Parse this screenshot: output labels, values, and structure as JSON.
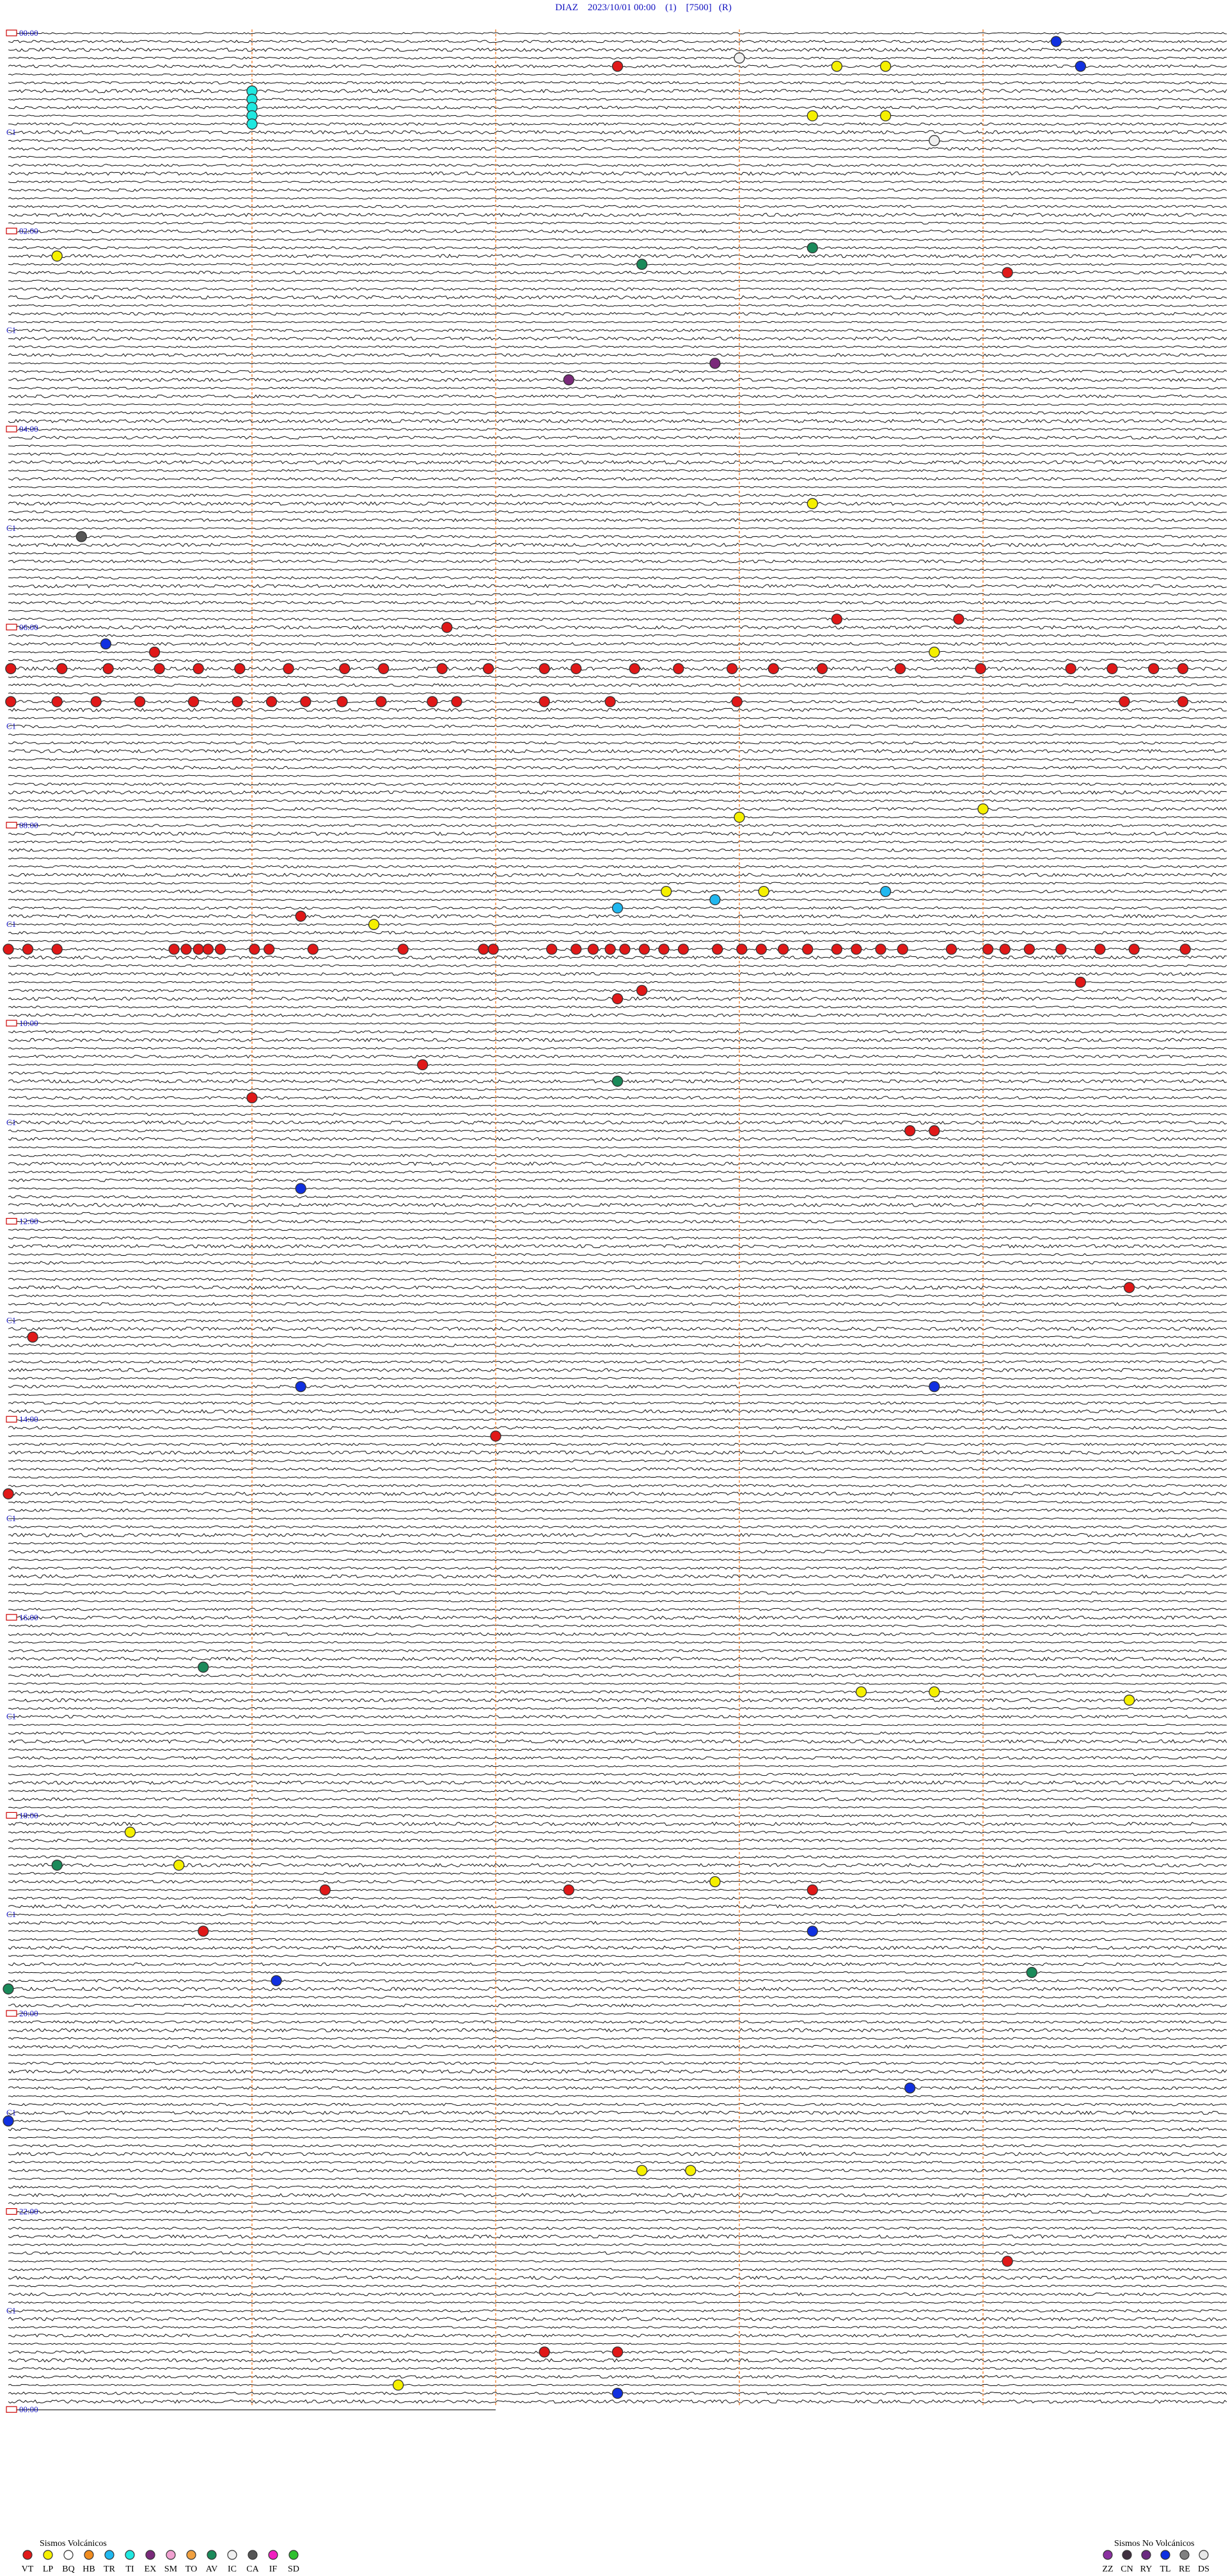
{
  "header": "DIAZ    2023/10/01 00:00    (1)    [7500]   (R)",
  "hour_labels": [
    "00:00",
    "02:00",
    "04:00",
    "06:00",
    "08:00",
    "10:00",
    "12:00",
    "14:00",
    "16:00",
    "18:00",
    "20:00",
    "22:00",
    "00:00"
  ],
  "channel_label": "C1",
  "legend": {
    "volcanic": {
      "title": "Sismos Volcánicos",
      "items": [
        {
          "code": "VT",
          "color": "#e01818"
        },
        {
          "code": "LP",
          "color": "#f5f000"
        },
        {
          "code": "BQ",
          "color": "#ffffff"
        },
        {
          "code": "HB",
          "color": "#f08c20"
        },
        {
          "code": "TR",
          "color": "#20b8f0"
        },
        {
          "code": "TI",
          "color": "#20e8e0"
        },
        {
          "code": "EX",
          "color": "#7a2a7a"
        },
        {
          "code": "SM",
          "color": "#f0a0d0"
        },
        {
          "code": "TO",
          "color": "#f0a040"
        },
        {
          "code": "AV",
          "color": "#1a8a5a"
        },
        {
          "code": "IC",
          "color": "#f0f0f0"
        },
        {
          "code": "CA",
          "color": "#555555"
        },
        {
          "code": "IF",
          "color": "#f020c0"
        },
        {
          "code": "SD",
          "color": "#30c030"
        }
      ]
    },
    "non_volcanic": {
      "title": "Sismos No Volcánicos",
      "items": [
        {
          "code": "ZZ",
          "color": "#8a30a0"
        },
        {
          "code": "CN",
          "color": "#403040"
        },
        {
          "code": "RY",
          "color": "#6a2a80"
        },
        {
          "code": "TL",
          "color": "#1030e0"
        },
        {
          "code": "RE",
          "color": "#808080"
        },
        {
          "code": "DS",
          "color": "#e8e8e8"
        }
      ]
    }
  },
  "events": [
    {
      "code": "TL",
      "minute": 9.3
    },
    {
      "code": "IC",
      "minute": 18.0
    },
    {
      "code": "VT",
      "minute": 22.5
    },
    {
      "code": "LP",
      "minute": 23.4
    },
    {
      "code": "LP",
      "minute": 23.6
    },
    {
      "code": "TL",
      "minute": 24.4
    },
    {
      "code": "TI",
      "minute": 36.0
    },
    {
      "code": "TI",
      "minute": 41.0
    },
    {
      "code": "TI",
      "minute": 46.0
    },
    {
      "code": "TI",
      "minute": 51.0
    },
    {
      "code": "TI",
      "minute": 56.0
    },
    {
      "code": "LP",
      "minute": 53.3
    },
    {
      "code": "LP",
      "minute": 53.6
    },
    {
      "code": "IC",
      "minute": 68.8
    },
    {
      "code": "AV",
      "minute": 133.3
    },
    {
      "code": "LP",
      "minute": 135.2
    },
    {
      "code": "AV",
      "minute": 142.6
    },
    {
      "code": "VT",
      "minute": 149.1
    },
    {
      "code": "EX",
      "minute": 202.9
    },
    {
      "code": "EX",
      "minute": 212.3
    },
    {
      "code": "LP",
      "minute": 288.3
    },
    {
      "code": "CA",
      "minute": 305.3
    },
    {
      "code": "VT",
      "minute": 358.4
    },
    {
      "code": "VT",
      "minute": 358.9
    },
    {
      "code": "VT",
      "minute": 361.8
    },
    {
      "code": "TL",
      "minute": 370.4
    },
    {
      "code": "VT",
      "minute": 375.6
    },
    {
      "code": "LP",
      "minute": 378.8
    },
    {
      "code": "VT",
      "minute": 385.01
    },
    {
      "code": "VT",
      "minute": 385.22
    },
    {
      "code": "VT",
      "minute": 385.41
    },
    {
      "code": "VT",
      "minute": 385.62
    },
    {
      "code": "VT",
      "minute": 385.78
    },
    {
      "code": "VT",
      "minute": 385.95
    },
    {
      "code": "VT",
      "minute": 386.15
    },
    {
      "code": "VT",
      "minute": 386.38
    },
    {
      "code": "VT",
      "minute": 386.54
    },
    {
      "code": "VT",
      "minute": 386.78
    },
    {
      "code": "VT",
      "minute": 386.97
    },
    {
      "code": "VT",
      "minute": 387.2
    },
    {
      "code": "VT",
      "minute": 387.33
    },
    {
      "code": "VT",
      "minute": 387.57
    },
    {
      "code": "VT",
      "minute": 387.75
    },
    {
      "code": "VT",
      "minute": 387.97
    },
    {
      "code": "VT",
      "minute": 388.14
    },
    {
      "code": "VT",
      "minute": 388.34
    },
    {
      "code": "VT",
      "minute": 388.66
    },
    {
      "code": "VT",
      "minute": 388.99
    },
    {
      "code": "VT",
      "minute": 389.36
    },
    {
      "code": "VT",
      "minute": 389.53
    },
    {
      "code": "VT",
      "minute": 389.7
    },
    {
      "code": "VT",
      "minute": 389.82
    },
    {
      "code": "VT",
      "minute": 405.01
    },
    {
      "code": "VT",
      "minute": 405.2
    },
    {
      "code": "VT",
      "minute": 405.36
    },
    {
      "code": "VT",
      "minute": 405.54
    },
    {
      "code": "VT",
      "minute": 405.76
    },
    {
      "code": "VT",
      "minute": 405.94
    },
    {
      "code": "VT",
      "minute": 406.08
    },
    {
      "code": "VT",
      "minute": 406.22
    },
    {
      "code": "VT",
      "minute": 406.37
    },
    {
      "code": "VT",
      "minute": 406.53
    },
    {
      "code": "VT",
      "minute": 406.74
    },
    {
      "code": "VT",
      "minute": 406.84
    },
    {
      "code": "VT",
      "minute": 407.2
    },
    {
      "code": "VT",
      "minute": 407.47
    },
    {
      "code": "VT",
      "minute": 407.99
    },
    {
      "code": "VT",
      "minute": 409.58
    },
    {
      "code": "VT",
      "minute": 409.82
    },
    {
      "code": "LP",
      "minute": 474.0
    },
    {
      "code": "LP",
      "minute": 478.0
    },
    {
      "code": "LP",
      "minute": 522.7
    },
    {
      "code": "LP",
      "minute": 523.1
    },
    {
      "code": "TR",
      "minute": 523.6
    },
    {
      "code": "TR",
      "minute": 527.9
    },
    {
      "code": "TR",
      "minute": 532.5
    },
    {
      "code": "VT",
      "minute": 536.2
    },
    {
      "code": "LP",
      "minute": 541.5
    },
    {
      "code": "VT",
      "minute": 555.0
    },
    {
      "code": "VT",
      "minute": 555.08
    },
    {
      "code": "VT",
      "minute": 555.2
    },
    {
      "code": "VT",
      "minute": 555.68
    },
    {
      "code": "VT",
      "minute": 555.73
    },
    {
      "code": "VT",
      "minute": 555.78
    },
    {
      "code": "VT",
      "minute": 555.82
    },
    {
      "code": "VT",
      "minute": 555.87
    },
    {
      "code": "VT",
      "minute": 556.01
    },
    {
      "code": "VT",
      "minute": 556.07
    },
    {
      "code": "VT",
      "minute": 556.25
    },
    {
      "code": "VT",
      "minute": 556.62
    },
    {
      "code": "VT",
      "minute": 556.95
    },
    {
      "code": "VT",
      "minute": 556.99
    },
    {
      "code": "VT",
      "minute": 557.23
    },
    {
      "code": "VT",
      "minute": 557.33
    },
    {
      "code": "VT",
      "minute": 557.4
    },
    {
      "code": "VT",
      "minute": 557.47
    },
    {
      "code": "VT",
      "minute": 557.53
    },
    {
      "code": "VT",
      "minute": 557.61
    },
    {
      "code": "VT",
      "minute": 557.69
    },
    {
      "code": "VT",
      "minute": 557.77
    },
    {
      "code": "VT",
      "minute": 557.91
    },
    {
      "code": "VT",
      "minute": 558.01
    },
    {
      "code": "VT",
      "minute": 558.09
    },
    {
      "code": "VT",
      "minute": 558.18
    },
    {
      "code": "VT",
      "minute": 558.28
    },
    {
      "code": "VT",
      "minute": 558.4
    },
    {
      "code": "VT",
      "minute": 558.48
    },
    {
      "code": "VT",
      "minute": 558.58
    },
    {
      "code": "VT",
      "minute": 558.67
    },
    {
      "code": "VT",
      "minute": 558.87
    },
    {
      "code": "VT",
      "minute": 559.02
    },
    {
      "code": "VT",
      "minute": 559.09
    },
    {
      "code": "VT",
      "minute": 559.19
    },
    {
      "code": "VT",
      "minute": 559.32
    },
    {
      "code": "VT",
      "minute": 559.48
    },
    {
      "code": "VT",
      "minute": 559.62
    },
    {
      "code": "VT",
      "minute": 559.83
    },
    {
      "code": "VT",
      "minute": 579.4
    },
    {
      "code": "VT",
      "minute": 582.6
    },
    {
      "code": "VT",
      "minute": 587.5
    },
    {
      "code": "VT",
      "minute": 626.7
    },
    {
      "code": "AV",
      "minute": 637.5
    },
    {
      "code": "VT",
      "minute": 646.0
    },
    {
      "code": "VT",
      "minute": 668.7
    },
    {
      "code": "VT",
      "minute": 668.8
    },
    {
      "code": "TL",
      "minute": 701.2
    },
    {
      "code": "VT",
      "minute": 764.6
    },
    {
      "code": "VT",
      "minute": 790.1
    },
    {
      "code": "TL",
      "minute": 821.2
    },
    {
      "code": "TL",
      "minute": 823.8
    },
    {
      "code": "VT",
      "minute": 852.0
    },
    {
      "code": "VT",
      "minute": 885.0
    },
    {
      "code": "AV",
      "minute": 990.8
    },
    {
      "code": "LP",
      "minute": 1008.5
    },
    {
      "code": "LP",
      "minute": 1008.8
    },
    {
      "code": "LP",
      "minute": 1014.6
    },
    {
      "code": "LP",
      "minute": 1090.5
    },
    {
      "code": "AV",
      "minute": 1110.2
    },
    {
      "code": "LP",
      "minute": 1110.7
    },
    {
      "code": "LP",
      "minute": 1122.9
    },
    {
      "code": "VT",
      "minute": 1126.3
    },
    {
      "code": "VT",
      "minute": 1127.3
    },
    {
      "code": "VT",
      "minute": 1128.3
    },
    {
      "code": "VT",
      "minute": 1150.8
    },
    {
      "code": "TL",
      "minute": 1153.3
    },
    {
      "code": "AV",
      "minute": 1179.2
    },
    {
      "code": "TL",
      "minute": 1181.1
    },
    {
      "code": "AV",
      "minute": 1185.0
    },
    {
      "code": "TL",
      "minute": 1248.7
    },
    {
      "code": "TL",
      "minute": 1265.0
    },
    {
      "code": "LP",
      "minute": 1297.6
    },
    {
      "code": "LP",
      "minute": 1297.8
    },
    {
      "code": "VT",
      "minute": 1354.1
    },
    {
      "code": "VT",
      "minute": 1407.2
    },
    {
      "code": "VT",
      "minute": 1407.5
    },
    {
      "code": "LP",
      "minute": 1426.6
    },
    {
      "code": "TL",
      "minute": 1432.5
    }
  ]
}
